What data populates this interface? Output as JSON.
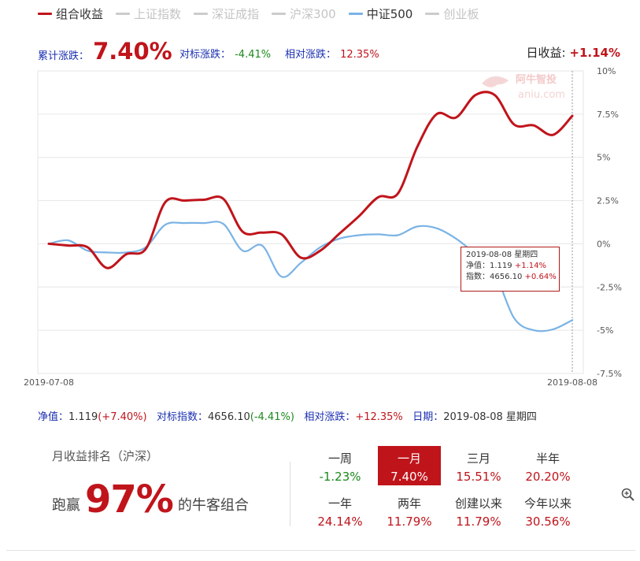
{
  "legend": [
    {
      "label": "组合收益",
      "color": "#c0141b",
      "active": true
    },
    {
      "label": "上证指数",
      "color": "#cccccc",
      "active": false
    },
    {
      "label": "深证成指",
      "color": "#cccccc",
      "active": false
    },
    {
      "label": "沪深300",
      "color": "#cccccc",
      "active": false
    },
    {
      "label": "中证500",
      "color": "#7ab3e5",
      "active": true
    },
    {
      "label": "创业板",
      "color": "#cccccc",
      "active": false
    }
  ],
  "stats": {
    "cum_label": "累计涨跌：",
    "cum_value": "7.40%",
    "bench_label": "对标涨跌：",
    "bench_value": "-4.41%",
    "rel_label": "相对涨跌：",
    "rel_value": "12.35%",
    "daily_label": "日收益:",
    "daily_value": "+1.14%"
  },
  "watermark": {
    "brand": "阿牛智投",
    "site": "aniu.com"
  },
  "tooltip": {
    "date": "2019-08-08 星期四",
    "nav_label": "净值：",
    "nav_value": "1.119",
    "nav_change": "+1.14%",
    "index_label": "指数：",
    "index_value": "4656.10",
    "index_change": "+0.64%"
  },
  "info": {
    "nav_label": "净值：",
    "nav_value": "1.119",
    "nav_change": "(+7.40%)",
    "bench_label": "对标指数：",
    "bench_value": "4656.10",
    "bench_change": "(-4.41%)",
    "rel_label": "相对涨跌：",
    "rel_value": "+12.35%",
    "date_label": "日期：",
    "date_value": "2019-08-08 星期四"
  },
  "rank": {
    "title": "月收益排名（沪深）",
    "prefix": "跑赢",
    "percent": "97%",
    "suffix": "的牛客组合"
  },
  "periods": [
    {
      "label": "一周",
      "value": "-1.23%",
      "tone": "green",
      "active": false
    },
    {
      "label": "一月",
      "value": "7.40%",
      "tone": "red",
      "active": true
    },
    {
      "label": "三月",
      "value": "15.51%",
      "tone": "red",
      "active": false
    },
    {
      "label": "半年",
      "value": "20.20%",
      "tone": "red",
      "active": false
    },
    {
      "label": "一年",
      "value": "24.14%",
      "tone": "red",
      "active": false
    },
    {
      "label": "两年",
      "value": "11.79%",
      "tone": "red",
      "active": false
    },
    {
      "label": "创建以来",
      "value": "11.79%",
      "tone": "red",
      "active": false
    },
    {
      "label": "今年以来",
      "value": "30.56%",
      "tone": "red",
      "active": false
    }
  ],
  "icons": {
    "zoom": "zoom-in-icon"
  },
  "chart_data": {
    "type": "line",
    "x_labels": [
      "2019-07-08",
      "2019-08-08"
    ],
    "y_ticks": [
      "10%",
      "7.5%",
      "5%",
      "2.5%",
      "0%",
      "-2.5%",
      "-5%",
      "-7.5%"
    ],
    "ylim": [
      -7.5,
      10
    ],
    "grid": true,
    "series": [
      {
        "name": "组合收益",
        "color": "#c0141b",
        "values": [
          0.0,
          -0.1,
          -0.2,
          -1.4,
          -0.6,
          -0.3,
          2.4,
          2.5,
          2.55,
          2.6,
          0.7,
          0.65,
          0.55,
          -0.8,
          -0.4,
          0.6,
          1.6,
          2.7,
          2.9,
          5.6,
          7.5,
          7.3,
          8.6,
          8.6,
          6.9,
          6.85,
          6.3,
          7.4
        ]
      },
      {
        "name": "中证500",
        "color": "#7ab3e5",
        "values": [
          0.0,
          0.2,
          -0.4,
          -0.5,
          -0.5,
          -0.2,
          1.1,
          1.2,
          1.2,
          1.15,
          -0.4,
          -0.1,
          -1.9,
          -1.1,
          -0.2,
          0.3,
          0.5,
          0.55,
          0.5,
          1.0,
          0.9,
          0.3,
          -0.6,
          -1.7,
          -4.3,
          -5.0,
          -4.95,
          -4.41
        ]
      }
    ]
  }
}
